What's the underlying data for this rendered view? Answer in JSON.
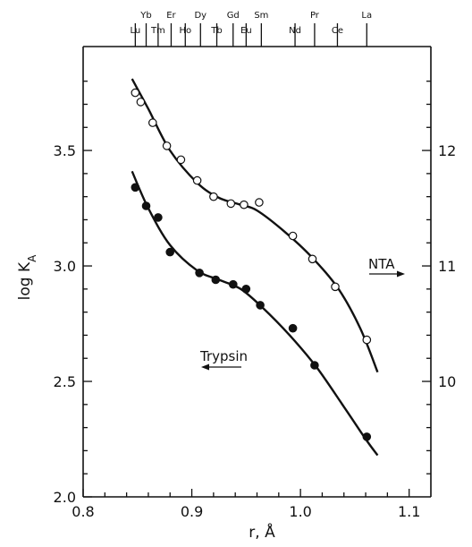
{
  "chart_data": {
    "type": "scatter",
    "xlabel": "r, Å",
    "ylabel": "log K",
    "ylabel_sub": "A",
    "xlim": [
      0.8,
      1.12
    ],
    "ylim": [
      2.0,
      3.95
    ],
    "x_ticks": [
      0.8,
      0.9,
      1.0,
      1.1
    ],
    "x_tick_labels": [
      "0.8",
      "0.9",
      "1.0",
      "1.1"
    ],
    "y_ticks": [
      2.0,
      2.5,
      3.0,
      3.5
    ],
    "y_tick_labels": [
      "2.0",
      "2.5",
      "3.0",
      "3.5"
    ],
    "right_axis": {
      "ticks": [
        {
          "y": 2.5,
          "label": "10"
        },
        {
          "y": 3.0,
          "label": "11"
        },
        {
          "y": 3.5,
          "label": "12"
        }
      ]
    },
    "top_axis": {
      "ions": [
        {
          "label": "Lu",
          "x": 0.848,
          "row": "lower"
        },
        {
          "label": "Yb",
          "x": 0.858,
          "row": "upper"
        },
        {
          "label": "Tm",
          "x": 0.869,
          "row": "lower"
        },
        {
          "label": "Er",
          "x": 0.881,
          "row": "upper"
        },
        {
          "label": "Ho",
          "x": 0.894,
          "row": "lower"
        },
        {
          "label": "Dy",
          "x": 0.908,
          "row": "upper"
        },
        {
          "label": "Tb",
          "x": 0.923,
          "row": "lower"
        },
        {
          "label": "Gd",
          "x": 0.938,
          "row": "upper"
        },
        {
          "label": "Eu",
          "x": 0.95,
          "row": "lower"
        },
        {
          "label": "Sm",
          "x": 0.964,
          "row": "upper"
        },
        {
          "label": "Nd",
          "x": 0.995,
          "row": "lower"
        },
        {
          "label": "Pr",
          "x": 1.013,
          "row": "upper"
        },
        {
          "label": "Ce",
          "x": 1.034,
          "row": "lower"
        },
        {
          "label": "La",
          "x": 1.061,
          "row": "upper"
        }
      ]
    },
    "series": [
      {
        "name": "NTA",
        "marker": "open-circle",
        "arrow": "right",
        "points": [
          [
            0.848,
            3.75
          ],
          [
            0.853,
            3.71
          ],
          [
            0.864,
            3.62
          ],
          [
            0.877,
            3.52
          ],
          [
            0.89,
            3.46
          ],
          [
            0.905,
            3.37
          ],
          [
            0.92,
            3.3
          ],
          [
            0.936,
            3.27
          ],
          [
            0.948,
            3.265
          ],
          [
            0.962,
            3.275
          ],
          [
            0.993,
            3.13
          ],
          [
            1.011,
            3.03
          ],
          [
            1.032,
            2.91
          ],
          [
            1.061,
            2.68
          ]
        ],
        "curve": [
          [
            0.845,
            3.81
          ],
          [
            0.86,
            3.68
          ],
          [
            0.88,
            3.5
          ],
          [
            0.905,
            3.36
          ],
          [
            0.925,
            3.295
          ],
          [
            0.945,
            3.265
          ],
          [
            0.96,
            3.24
          ],
          [
            0.985,
            3.15
          ],
          [
            1.01,
            3.04
          ],
          [
            1.035,
            2.9
          ],
          [
            1.055,
            2.73
          ],
          [
            1.071,
            2.54
          ]
        ]
      },
      {
        "name": "Trypsin",
        "marker": "filled-circle",
        "arrow": "left",
        "points": [
          [
            0.848,
            3.34
          ],
          [
            0.858,
            3.26
          ],
          [
            0.869,
            3.21
          ],
          [
            0.88,
            3.06
          ],
          [
            0.907,
            2.97
          ],
          [
            0.922,
            2.94
          ],
          [
            0.938,
            2.92
          ],
          [
            0.95,
            2.9
          ],
          [
            0.963,
            2.83
          ],
          [
            0.993,
            2.73
          ],
          [
            1.013,
            2.57
          ],
          [
            1.061,
            2.26
          ]
        ],
        "curve": [
          [
            0.845,
            3.41
          ],
          [
            0.86,
            3.25
          ],
          [
            0.88,
            3.09
          ],
          [
            0.905,
            2.98
          ],
          [
            0.925,
            2.94
          ],
          [
            0.945,
            2.9
          ],
          [
            0.965,
            2.82
          ],
          [
            0.99,
            2.7
          ],
          [
            1.015,
            2.56
          ],
          [
            1.04,
            2.39
          ],
          [
            1.06,
            2.25
          ],
          [
            1.071,
            2.18
          ]
        ]
      }
    ]
  }
}
